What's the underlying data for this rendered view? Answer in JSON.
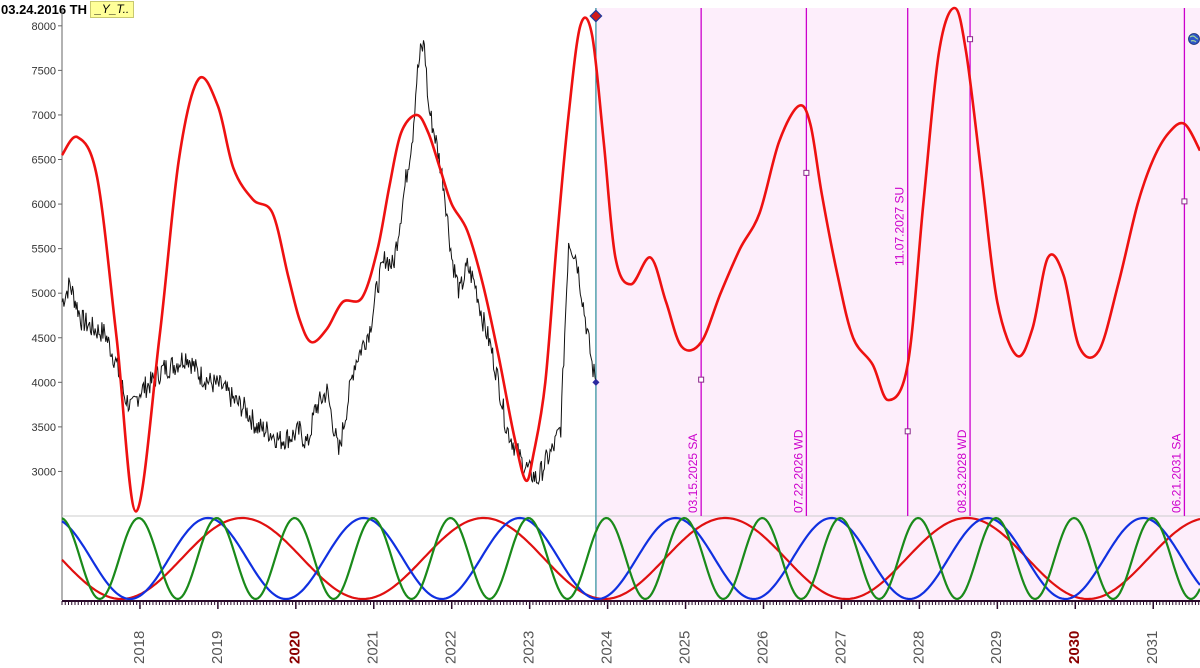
{
  "header": {
    "date": "03.24.2016 TH",
    "label": "_Y_T.."
  },
  "colors": {
    "forecast_line": "#ee1111",
    "price_line": "#111111",
    "projection_bg": "#fdeefb",
    "date_markers": "#cc00cc",
    "current_marker": "#2a8a9a",
    "wave_red": "#e01010",
    "wave_blue": "#1030e0",
    "wave_green": "#1a8a1a",
    "tick_dark_red": "#8b0000"
  },
  "icons": {
    "globe": "globe-icon"
  },
  "chart_data": [
    {
      "type": "line",
      "title": "",
      "xlabel": "",
      "ylabel": "",
      "x_ticks": [
        {
          "label": "2018",
          "bold": false
        },
        {
          "label": "2019",
          "bold": false
        },
        {
          "label": "2020",
          "bold": true
        },
        {
          "label": "2021",
          "bold": false
        },
        {
          "label": "2022",
          "bold": false
        },
        {
          "label": "2023",
          "bold": false
        },
        {
          "label": "2024",
          "bold": false
        },
        {
          "label": "2025",
          "bold": false
        },
        {
          "label": "2026",
          "bold": false
        },
        {
          "label": "2027",
          "bold": false
        },
        {
          "label": "2028",
          "bold": false
        },
        {
          "label": "2029",
          "bold": false
        },
        {
          "label": "2030",
          "bold": true
        },
        {
          "label": "2031",
          "bold": false
        }
      ],
      "xlim": [
        2017.0,
        2031.6
      ],
      "ylim": [
        2500,
        8200
      ],
      "y_ticks": [
        3000,
        3500,
        4000,
        4500,
        5000,
        5500,
        6000,
        6500,
        7000,
        7500,
        8000
      ],
      "current_date": 2023.85,
      "projection_region": [
        2023.85,
        2031.6
      ],
      "series": [
        {
          "key": "forecast",
          "style": "smooth-red",
          "x": [
            2017.0,
            2017.2,
            2017.45,
            2017.7,
            2017.95,
            2018.25,
            2018.5,
            2018.75,
            2019.0,
            2019.2,
            2019.45,
            2019.7,
            2019.9,
            2020.05,
            2020.2,
            2020.4,
            2020.6,
            2020.85,
            2021.05,
            2021.2,
            2021.35,
            2021.55,
            2021.7,
            2021.85,
            2022.0,
            2022.2,
            2022.4,
            2022.6,
            2022.8,
            2022.95,
            2023.05,
            2023.2,
            2023.35,
            2023.5,
            2023.65,
            2023.8,
            2023.95,
            2024.1,
            2024.3,
            2024.55,
            2024.75,
            2024.95,
            2025.2,
            2025.45,
            2025.7,
            2025.95,
            2026.2,
            2026.45,
            2026.6,
            2026.75,
            2026.95,
            2027.15,
            2027.4,
            2027.6,
            2027.85,
            2028.05,
            2028.25,
            2028.45,
            2028.6,
            2028.8,
            2029.0,
            2029.25,
            2029.45,
            2029.65,
            2029.85,
            2030.05,
            2030.3,
            2030.55,
            2030.8,
            2031.0,
            2031.2,
            2031.4,
            2031.6
          ],
          "y": [
            6550,
            6750,
            6300,
            4500,
            2550,
            4500,
            6500,
            7400,
            7100,
            6400,
            6050,
            5900,
            5200,
            4700,
            4450,
            4600,
            4900,
            4950,
            5500,
            6200,
            6800,
            7000,
            6800,
            6400,
            6000,
            5700,
            5100,
            4300,
            3400,
            2900,
            3200,
            4000,
            5600,
            7000,
            8000,
            7900,
            6700,
            5400,
            5100,
            5400,
            4900,
            4400,
            4450,
            5000,
            5500,
            5900,
            6700,
            7100,
            6900,
            6100,
            5200,
            4500,
            4200,
            3800,
            4200,
            6000,
            7700,
            8200,
            7700,
            6300,
            4900,
            4300,
            4600,
            5400,
            5200,
            4400,
            4350,
            5100,
            6000,
            6500,
            6800,
            6900,
            6600
          ]
        },
        {
          "key": "price",
          "style": "noisy-black",
          "x": [
            2017.0,
            2017.1,
            2017.25,
            2017.4,
            2017.55,
            2017.7,
            2017.8,
            2017.9,
            2018.0,
            2018.15,
            2018.3,
            2018.45,
            2018.6,
            2018.75,
            2018.9,
            2019.05,
            2019.2,
            2019.35,
            2019.5,
            2019.65,
            2019.8,
            2019.95,
            2020.05,
            2020.15,
            2020.25,
            2020.4,
            2020.55,
            2020.65,
            2020.75,
            2020.85,
            2020.95,
            2021.05,
            2021.15,
            2021.25,
            2021.3,
            2021.4,
            2021.5,
            2021.55,
            2021.6,
            2021.65,
            2021.7,
            2021.8,
            2021.9,
            2022.0,
            2022.1,
            2022.2,
            2022.3,
            2022.4,
            2022.5,
            2022.6,
            2022.7,
            2022.8,
            2022.9,
            2023.0,
            2023.1,
            2023.2,
            2023.3,
            2023.4,
            2023.5,
            2023.6,
            2023.7,
            2023.8,
            2023.85
          ],
          "y": [
            4900,
            5100,
            4700,
            4600,
            4550,
            4200,
            3850,
            3700,
            3900,
            4000,
            4150,
            4200,
            4300,
            4100,
            4000,
            3950,
            3800,
            3700,
            3500,
            3450,
            3350,
            3400,
            3450,
            3300,
            3700,
            3900,
            3200,
            3700,
            4200,
            4400,
            4600,
            5100,
            5400,
            5300,
            5600,
            6200,
            6800,
            7400,
            7700,
            7800,
            7100,
            6700,
            6200,
            5400,
            5000,
            5300,
            5100,
            4700,
            4400,
            4000,
            3500,
            3300,
            3100,
            3000,
            2900,
            3100,
            3250,
            3500,
            5600,
            5400,
            4800,
            4200,
            4000
          ]
        }
      ],
      "date_markers": [
        {
          "date": 2025.2,
          "label": "03.15.2025 SA",
          "y": 4030
        },
        {
          "date": 2026.55,
          "label": "07.22.2026 WD",
          "y": 6350
        },
        {
          "date": 2027.85,
          "label": "11.07.2027 SU",
          "y": 3450
        },
        {
          "date": 2028.65,
          "label": "08.23.2028 WD",
          "y": 7850
        },
        {
          "date": 2031.4,
          "label": "06.21.2031 SA",
          "y": 6030
        }
      ]
    },
    {
      "type": "line",
      "title": "",
      "ylim": [
        -1,
        1
      ],
      "series": [
        {
          "key": "wave_red",
          "period_years": 3.1,
          "phase": 1.6
        },
        {
          "key": "wave_blue",
          "period_years": 2.0,
          "phase": 0.4
        },
        {
          "key": "wave_green",
          "period_years": 1.0,
          "phase": 0.1
        }
      ]
    }
  ]
}
